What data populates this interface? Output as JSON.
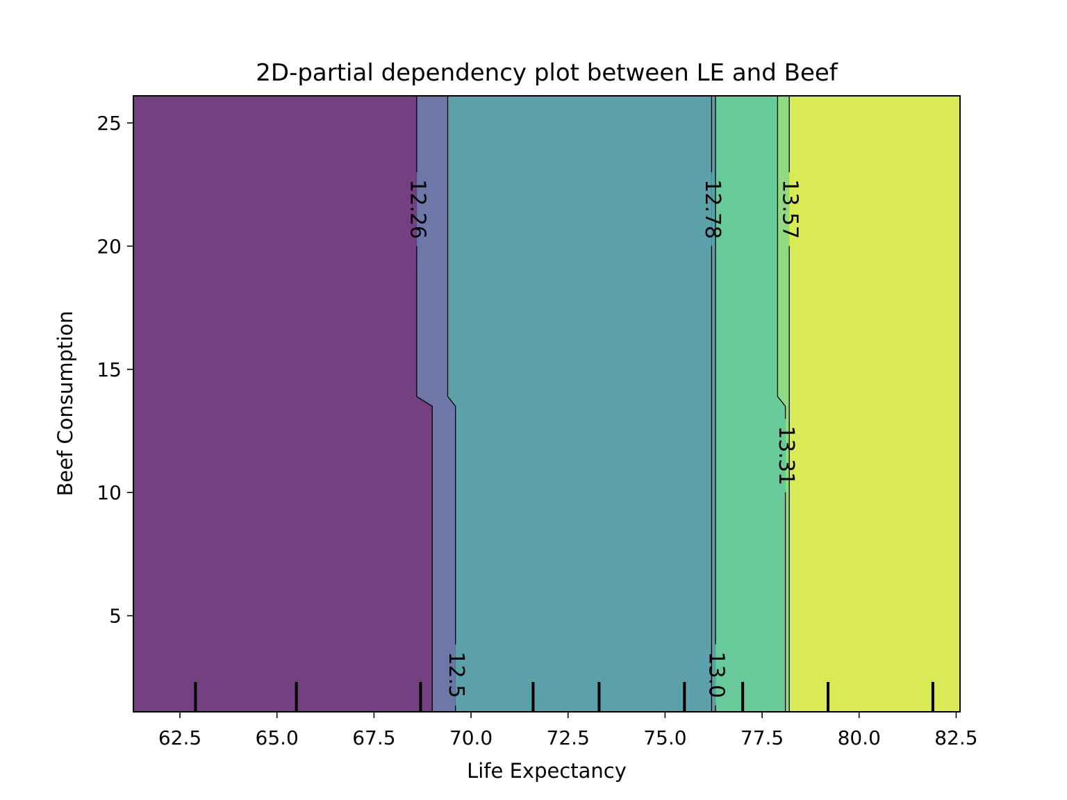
{
  "chart_data": {
    "type": "contour",
    "title": "2D-partial dependency plot between LE and Beef",
    "xlabel": "Life Expectancy",
    "ylabel": "Beef Consumption",
    "xlim": [
      61.3,
      82.6
    ],
    "ylim": [
      1.1,
      26.1
    ],
    "x_ticks": [
      62.5,
      65.0,
      67.5,
      70.0,
      72.5,
      75.0,
      77.5,
      80.0,
      82.5
    ],
    "x_tick_labels": [
      "62.5",
      "65.0",
      "67.5",
      "70.0",
      "72.5",
      "75.0",
      "77.5",
      "80.0",
      "82.5"
    ],
    "y_ticks": [
      5,
      10,
      15,
      20,
      25
    ],
    "y_tick_labels": [
      "5",
      "10",
      "15",
      "20",
      "25"
    ],
    "grid": false,
    "colormap": "viridis",
    "fill_alpha": 0.75,
    "contour_levels": [
      {
        "value": 12.26,
        "label": "12.26",
        "x_upper": 68.6,
        "x_lower": 69.0,
        "label_position": "upper"
      },
      {
        "value": 12.52,
        "label": "12.5",
        "x_upper": 69.4,
        "x_lower": 69.6,
        "label_position": "lower"
      },
      {
        "value": 12.78,
        "label": "12.78",
        "x_upper": 76.2,
        "x_lower": 76.2,
        "label_position": "upper"
      },
      {
        "value": 13.05,
        "label": "13.0",
        "x_upper": 76.3,
        "x_lower": 76.3,
        "label_position": "lower"
      },
      {
        "value": 13.31,
        "label": "13.31",
        "x_upper": 77.9,
        "x_lower": 78.1,
        "label_position": "lower"
      },
      {
        "value": 13.57,
        "label": "13.57",
        "x_upper": 78.2,
        "x_lower": 78.2,
        "label_position": "upper"
      }
    ],
    "step_y": [
      13.5,
      13.9
    ],
    "fill_regions": [
      {
        "range": "below 12.26",
        "color": "#440154"
      },
      {
        "range": "12.26-12.52",
        "color": "#3e4a89"
      },
      {
        "range": "12.52-12.78",
        "color": "#26828e"
      },
      {
        "range": "12.78-13.05",
        "color": "#26828e"
      },
      {
        "range": "13.05-13.31",
        "color": "#35b779"
      },
      {
        "range": "13.31-13.57",
        "color": "#6ccd5a"
      },
      {
        "range": "above 13.57",
        "color": "#cde11d"
      }
    ],
    "rug_x_deciles": [
      62.9,
      65.5,
      68.7,
      71.6,
      73.3,
      75.5,
      77.0,
      79.2,
      81.9
    ]
  }
}
